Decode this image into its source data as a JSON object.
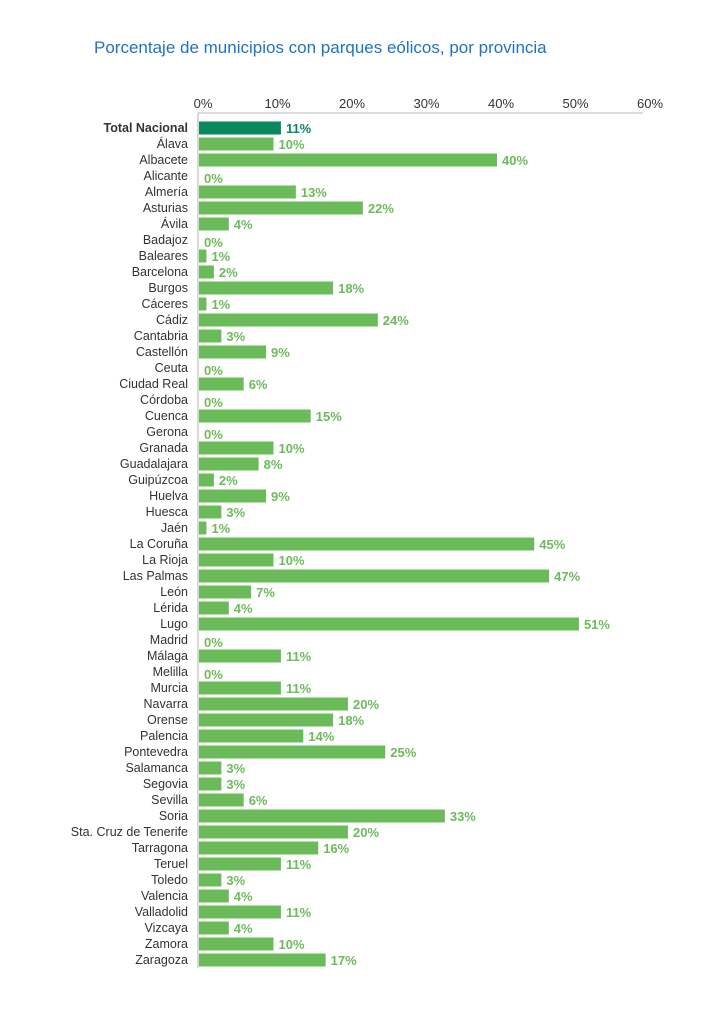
{
  "chart_data": {
    "type": "bar",
    "orientation": "horizontal",
    "title": "Porcentaje de municipios con parques eólicos, por provincia",
    "xlim": [
      0,
      60
    ],
    "xticks": [
      "0%",
      "10%",
      "20%",
      "30%",
      "40%",
      "50%",
      "60%"
    ],
    "xtick_values": [
      0,
      10,
      20,
      30,
      40,
      50,
      60
    ],
    "axis_position": "top",
    "grid": false,
    "colors": {
      "highlight": "#0a8a5c",
      "bar": "#6cbb5a",
      "title": "#1f73c4"
    },
    "highlight_category": "Total Nacional",
    "categories": [
      "Total Nacional",
      "Álava",
      "Albacete",
      "Alicante",
      "Almería",
      "Asturias",
      "Ávila",
      "Badajoz",
      "Baleares",
      "Barcelona",
      "Burgos",
      "Cáceres",
      "Cádiz",
      "Cantabria",
      "Castellón",
      "Ceuta",
      "Ciudad Real",
      "Córdoba",
      "Cuenca",
      "Gerona",
      "Granada",
      "Guadalajara",
      "Guipúzcoa",
      "Huelva",
      "Huesca",
      "Jaén",
      "La Coruña",
      "La Rioja",
      "Las Palmas",
      "León",
      "Lérida",
      "Lugo",
      "Madrid",
      "Málaga",
      "Melilla",
      "Murcia",
      "Navarra",
      "Orense",
      "Palencia",
      "Pontevedra",
      "Salamanca",
      "Segovia",
      "Sevilla",
      "Soria",
      "Sta. Cruz de Tenerife",
      "Tarragona",
      "Teruel",
      "Toledo",
      "Valencia",
      "Valladolid",
      "Vizcaya",
      "Zamora",
      "Zaragoza"
    ],
    "values": [
      11,
      10,
      40,
      0,
      13,
      22,
      4,
      0,
      1,
      2,
      18,
      1,
      24,
      3,
      9,
      0,
      6,
      0,
      15,
      0,
      10,
      8,
      2,
      9,
      3,
      1,
      45,
      10,
      47,
      7,
      4,
      51,
      0,
      11,
      0,
      11,
      20,
      18,
      14,
      25,
      3,
      3,
      6,
      33,
      20,
      16,
      11,
      3,
      4,
      11,
      4,
      10,
      17
    ],
    "labels": [
      "11%",
      "10%",
      "40%",
      "0%",
      "13%",
      "22%",
      "4%",
      "0%",
      "1%",
      "2%",
      "18%",
      "1%",
      "24%",
      "3%",
      "9%",
      "0%",
      "6%",
      "0%",
      "15%",
      "0%",
      "10%",
      "8%",
      "2%",
      "9%",
      "3%",
      "1%",
      "45%",
      "10%",
      "47%",
      "7%",
      "4%",
      "51%",
      "0%",
      "11%",
      "0%",
      "11%",
      "20%",
      "18%",
      "14%",
      "25%",
      "3%",
      "3%",
      "6%",
      "33%",
      "20%",
      "16%",
      "11%",
      "3%",
      "4%",
      "11%",
      "4%",
      "10%",
      "17%"
    ]
  }
}
